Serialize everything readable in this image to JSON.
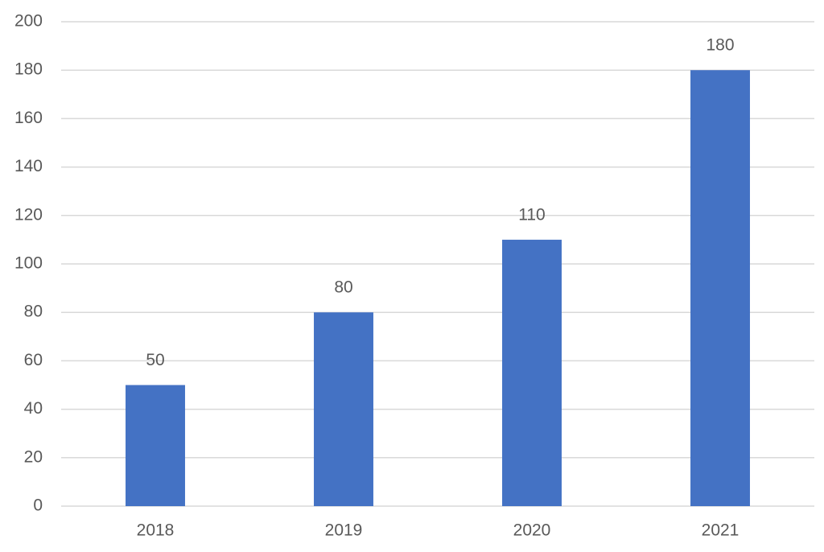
{
  "chart_data": {
    "type": "bar",
    "categories": [
      "2018",
      "2019",
      "2020",
      "2021"
    ],
    "values": [
      50,
      80,
      110,
      180
    ],
    "color": "#4472c4",
    "ylim": [
      0,
      200
    ],
    "yticks": [
      0,
      20,
      40,
      60,
      80,
      100,
      120,
      140,
      160,
      180,
      200
    ],
    "grid": true,
    "data_labels": true
  }
}
